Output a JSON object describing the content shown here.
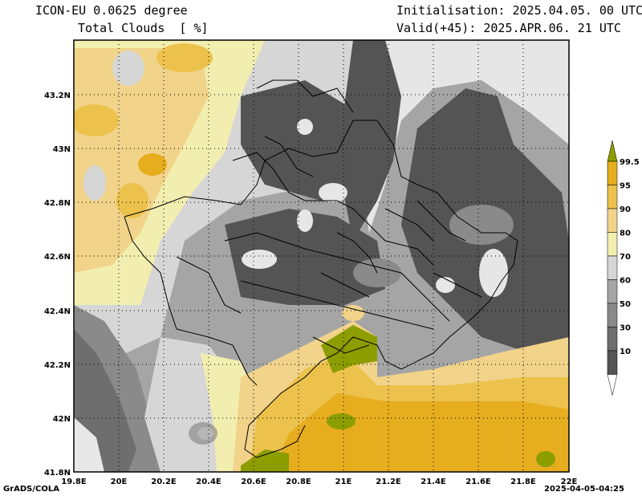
{
  "header": {
    "model": "ICON-EU 0.0625 degree",
    "field": "Total Clouds  [ %]",
    "initialisation": "Initialisation: 2025.04.05. 00 UTC",
    "valid": "Valid(+45): 2025.APR.06. 21 UTC"
  },
  "footer": {
    "credit": "GrADS/COLA",
    "timestamp": "2025-04-05-04:25"
  },
  "map": {
    "lon_labels": [
      "19.8E",
      "20E",
      "20.2E",
      "20.4E",
      "20.6E",
      "20.8E",
      "21E",
      "21.2E",
      "21.4E",
      "21.6E",
      "21.8E",
      "22E"
    ],
    "lat_labels": [
      "43.2N",
      "43N",
      "42.8N",
      "42.6N",
      "42.4N",
      "42.2N",
      "42N",
      "41.8N"
    ],
    "grid": "dotted"
  },
  "legend": {
    "labels": [
      "99.5",
      "95",
      "90",
      "80",
      "70",
      "60",
      "50",
      "30",
      "10"
    ],
    "colors": [
      "#8c9d00",
      "#e6ad1e",
      "#ecc24c",
      "#f1d38a",
      "#f2eeb0",
      "#d6d6d6",
      "#a5a5a5",
      "#8a8a8a",
      "#6e6e6e",
      "#545454",
      "#ffffff"
    ],
    "unit": "%"
  }
}
